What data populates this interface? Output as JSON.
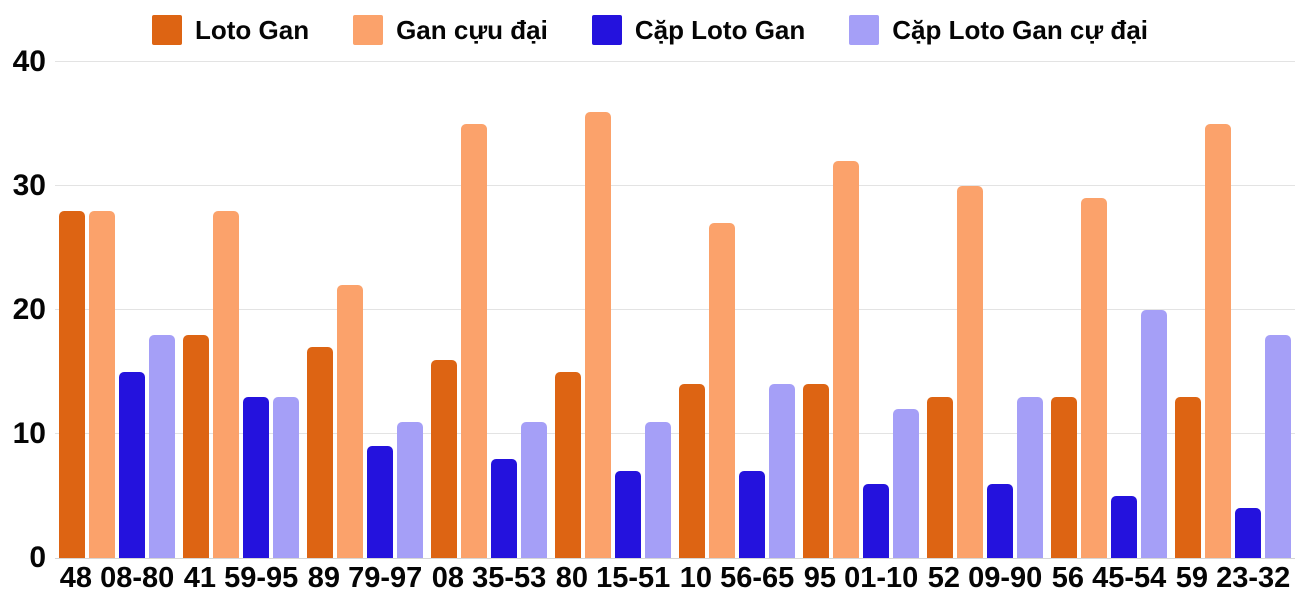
{
  "chart_data": {
    "type": "bar",
    "title": "",
    "categories": [
      "48 08-80",
      "41 59-95",
      "89 79-97",
      "08 35-53",
      "80 15-51",
      "10 56-65",
      "95 01-10",
      "52 09-90",
      "56 45-54",
      "59 23-32"
    ],
    "series": [
      {
        "name": "Loto Gan",
        "color": "#dd6413",
        "values": [
          28,
          18,
          17,
          16,
          15,
          14,
          14,
          13,
          13,
          13
        ]
      },
      {
        "name": "Gan cựu đại",
        "color": "#fba26b",
        "values": [
          28,
          28,
          22,
          35,
          36,
          27,
          32,
          30,
          29,
          35
        ]
      },
      {
        "name": "Cặp Loto Gan",
        "color": "#2412dd",
        "values": [
          15,
          13,
          9,
          8,
          7,
          7,
          6,
          6,
          5,
          4
        ]
      },
      {
        "name": "Cặp Loto Gan cự đại",
        "color": "#a59ff7",
        "values": [
          18,
          13,
          11,
          11,
          11,
          14,
          12,
          13,
          20,
          18
        ]
      }
    ],
    "ylim": [
      0,
      40
    ],
    "yticks": [
      0,
      10,
      20,
      30,
      40
    ],
    "grid": true,
    "legend_position": "top",
    "xlabel": "",
    "ylabel": ""
  },
  "colors": {
    "background": "#ffffff",
    "gridline": "#e3e3e3",
    "text": "#050505"
  }
}
